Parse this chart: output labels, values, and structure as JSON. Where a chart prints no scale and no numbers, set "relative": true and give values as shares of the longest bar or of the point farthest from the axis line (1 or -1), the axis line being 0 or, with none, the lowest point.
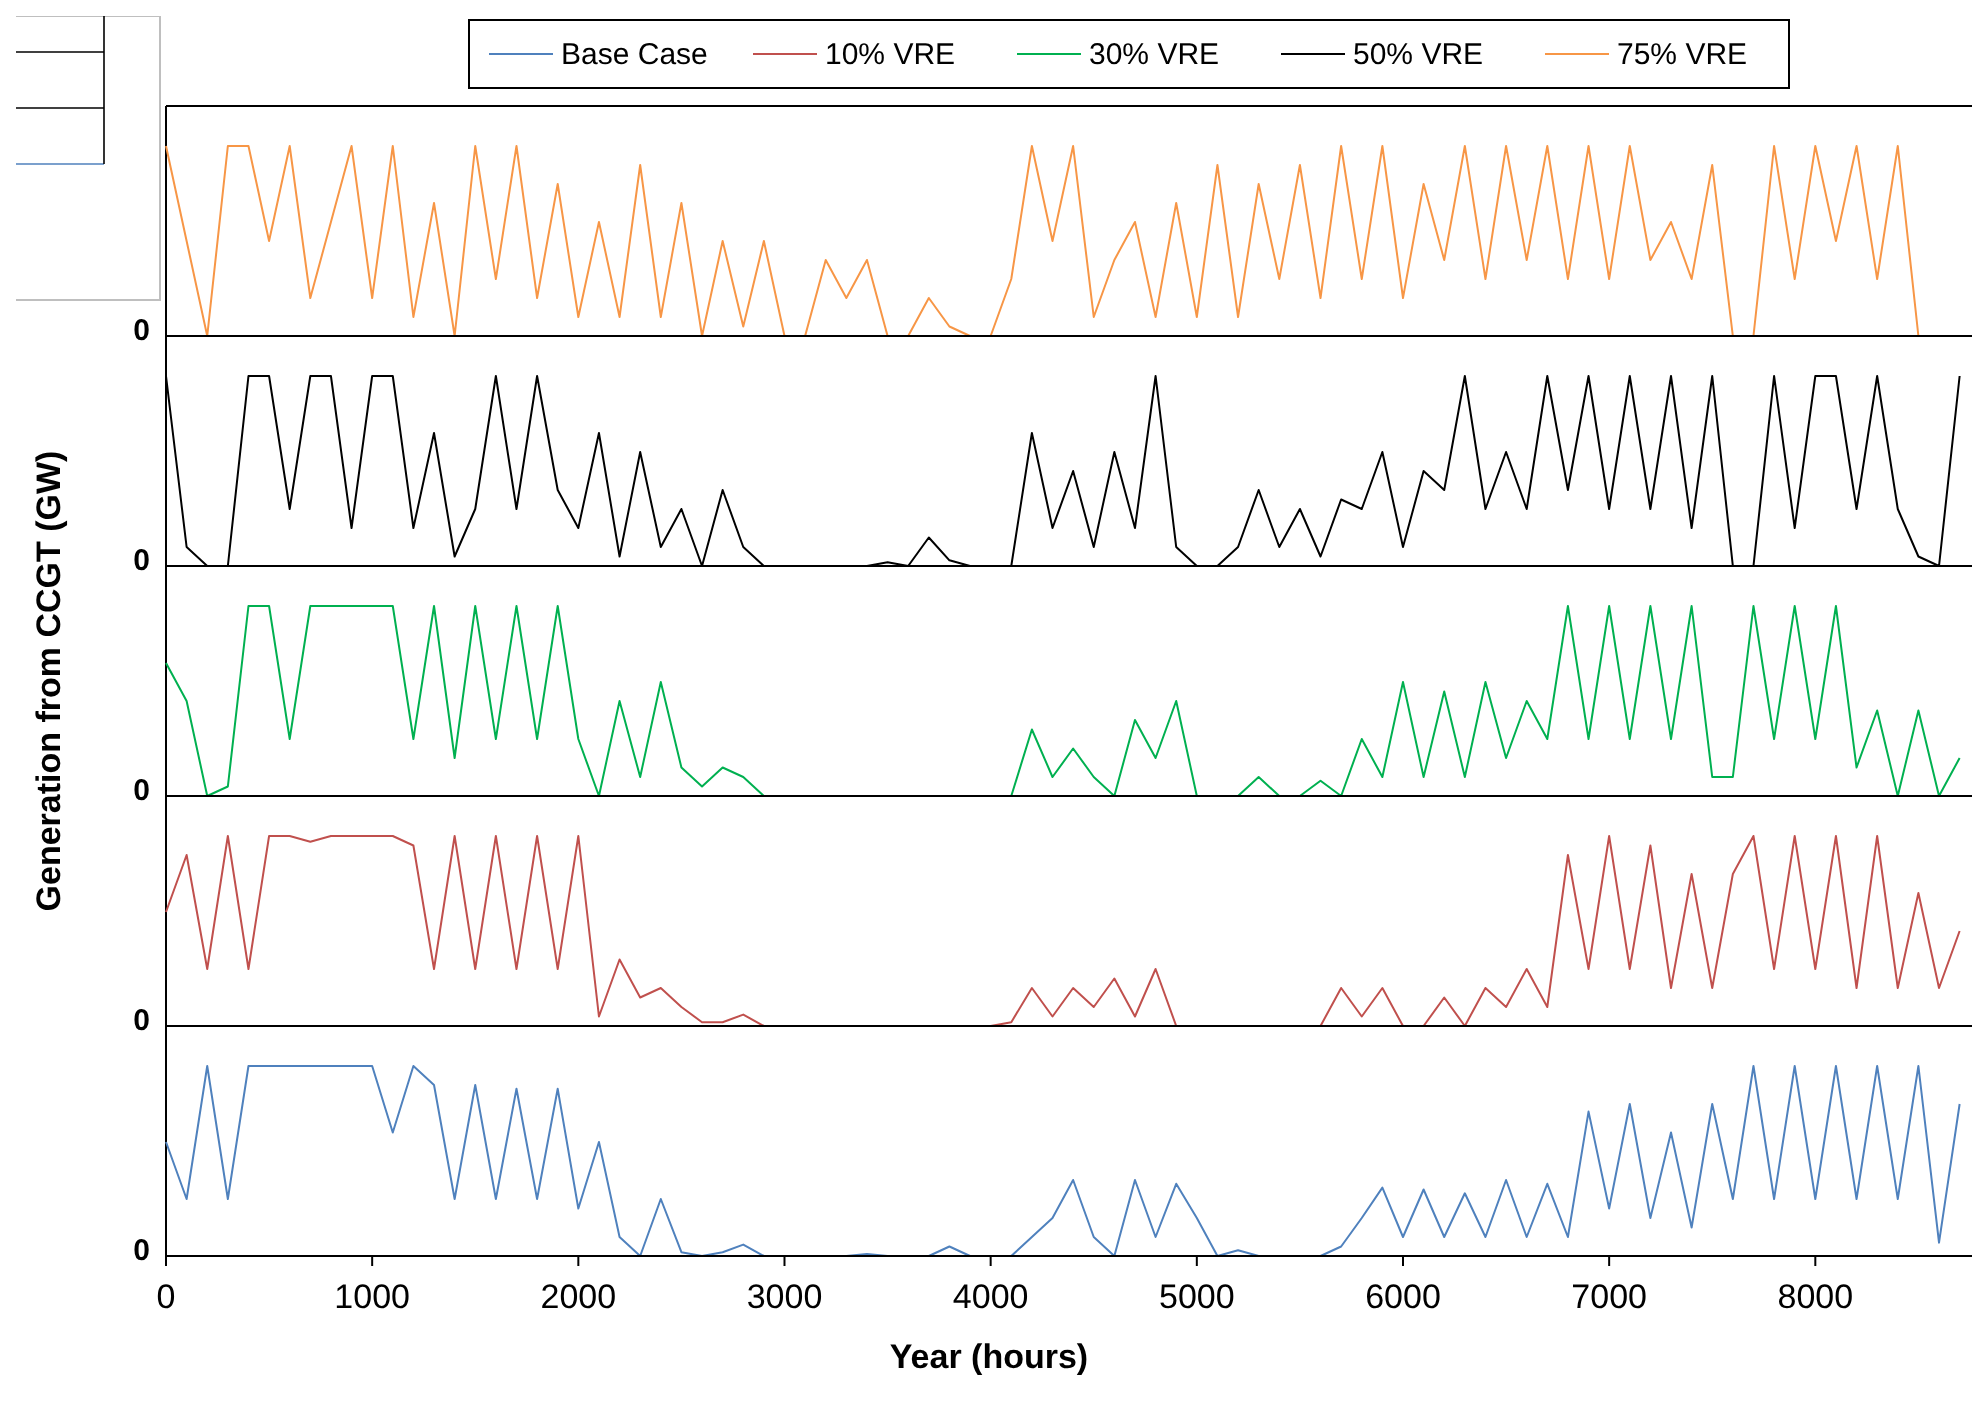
{
  "chart_data": [
    {
      "type": "line",
      "relative": true,
      "legend": "top",
      "tick_labels": false,
      "xlim": [
        0,
        8760
      ],
      "annotations": [
        "0"
      ],
      "x": [
        0,
        100,
        200,
        300,
        400,
        500,
        600,
        700,
        800,
        900,
        1000,
        1100,
        1200,
        1300,
        1400,
        1500,
        1600,
        1700,
        1800,
        1900,
        2000,
        2100,
        2200,
        2300,
        2400,
        2500,
        2600,
        2700,
        2800,
        2900,
        3000,
        3100,
        3200,
        3300,
        3400,
        3500,
        3600,
        3700,
        3800,
        3900,
        4000,
        4100,
        4200,
        4300,
        4400,
        4500,
        4600,
        4700,
        4800,
        4900,
        5000,
        5100,
        5200,
        5300,
        5400,
        5500,
        5600,
        5700,
        5800,
        5900,
        6000,
        6100,
        6200,
        6300,
        6400,
        6500,
        6600,
        6700,
        6800,
        6900,
        7000,
        7100,
        7200,
        7300,
        7400,
        7500,
        7600,
        7700,
        7800,
        7900,
        8000,
        8100,
        8200,
        8300,
        8400,
        8500,
        8600,
        8700
      ],
      "series": [
        {
          "name": "75% VRE",
          "color": "#f79646",
          "values": [
            1,
            0.5,
            0,
            1,
            1,
            0.5,
            1,
            0.2,
            0.6,
            1,
            0.2,
            1,
            0.1,
            0.7,
            0,
            1,
            0.3,
            1,
            0.2,
            0.8,
            0.1,
            0.6,
            0.1,
            0.9,
            0.1,
            0.7,
            0,
            0.5,
            0.05,
            0.5,
            0,
            0,
            0.4,
            0.2,
            0.4,
            0,
            0,
            0.2,
            0.05,
            0,
            0,
            0.3,
            1,
            0.5,
            1,
            0.1,
            0.4,
            0.6,
            0.1,
            0.7,
            0.1,
            0.9,
            0.1,
            0.8,
            0.3,
            0.9,
            0.2,
            1,
            0.3,
            1,
            0.2,
            0.8,
            0.4,
            1,
            0.3,
            1,
            0.4,
            1,
            0.3,
            1,
            0.3,
            1,
            0.4,
            0.6,
            0.3,
            0.9,
            0,
            0,
            1,
            0.3,
            1,
            0.5,
            1,
            0.3,
            1,
            0,
            0,
            0
          ]
        }
      ]
    },
    {
      "type": "line",
      "relative": true,
      "tick_labels": false,
      "xlim": [
        0,
        8760
      ],
      "annotations": [
        "0"
      ],
      "x": [
        0,
        100,
        200,
        300,
        400,
        500,
        600,
        700,
        800,
        900,
        1000,
        1100,
        1200,
        1300,
        1400,
        1500,
        1600,
        1700,
        1800,
        1900,
        2000,
        2100,
        2200,
        2300,
        2400,
        2500,
        2600,
        2700,
        2800,
        2900,
        3000,
        3100,
        3200,
        3300,
        3400,
        3500,
        3600,
        3700,
        3800,
        3900,
        4000,
        4100,
        4200,
        4300,
        4400,
        4500,
        4600,
        4700,
        4800,
        4900,
        5000,
        5100,
        5200,
        5300,
        5400,
        5500,
        5600,
        5700,
        5800,
        5900,
        6000,
        6100,
        6200,
        6300,
        6400,
        6500,
        6600,
        6700,
        6800,
        6900,
        7000,
        7100,
        7200,
        7300,
        7400,
        7500,
        7600,
        7700,
        7800,
        7900,
        8000,
        8100,
        8200,
        8300,
        8400,
        8500,
        8600,
        8700
      ],
      "series": [
        {
          "name": "50% VRE",
          "color": "#000000",
          "values": [
            1,
            0.1,
            0,
            0,
            1,
            1,
            0.3,
            1,
            1,
            0.2,
            1,
            1,
            0.2,
            0.7,
            0.05,
            0.3,
            1,
            0.3,
            1,
            0.4,
            0.2,
            0.7,
            0.05,
            0.6,
            0.1,
            0.3,
            0,
            0.4,
            0.1,
            0,
            0,
            0,
            0,
            0,
            0,
            0.02,
            0,
            0.15,
            0.03,
            0,
            0,
            0,
            0.7,
            0.2,
            0.5,
            0.1,
            0.6,
            0.2,
            1,
            0.1,
            0,
            0,
            0.1,
            0.4,
            0.1,
            0.3,
            0.05,
            0.35,
            0.3,
            0.6,
            0.1,
            0.5,
            0.4,
            1,
            0.3,
            0.6,
            0.3,
            1,
            0.4,
            1,
            0.3,
            1,
            0.3,
            1,
            0.2,
            1,
            0,
            0,
            1,
            0.2,
            1,
            1,
            0.3,
            1,
            0.3,
            0.05,
            0,
            1
          ]
        }
      ]
    },
    {
      "type": "line",
      "relative": true,
      "tick_labels": false,
      "xlim": [
        0,
        8760
      ],
      "annotations": [
        "0"
      ],
      "ylabel": "Generation from CCGT (GW)",
      "x": [
        0,
        100,
        200,
        300,
        400,
        500,
        600,
        700,
        800,
        900,
        1000,
        1100,
        1200,
        1300,
        1400,
        1500,
        1600,
        1700,
        1800,
        1900,
        2000,
        2100,
        2200,
        2300,
        2400,
        2500,
        2600,
        2700,
        2800,
        2900,
        3000,
        3100,
        3200,
        3300,
        3400,
        3500,
        3600,
        3700,
        3800,
        3900,
        4000,
        4100,
        4200,
        4300,
        4400,
        4500,
        4600,
        4700,
        4800,
        4900,
        5000,
        5100,
        5200,
        5300,
        5400,
        5500,
        5600,
        5700,
        5800,
        5900,
        6000,
        6100,
        6200,
        6300,
        6400,
        6500,
        6600,
        6700,
        6800,
        6900,
        7000,
        7100,
        7200,
        7300,
        7400,
        7500,
        7600,
        7700,
        7800,
        7900,
        8000,
        8100,
        8200,
        8300,
        8400,
        8500,
        8600,
        8700
      ],
      "series": [
        {
          "name": "30% VRE",
          "color": "#00b050",
          "values": [
            0.7,
            0.5,
            0,
            0.05,
            1,
            1,
            0.3,
            1,
            1,
            1,
            1,
            1,
            0.3,
            1,
            0.2,
            1,
            0.3,
            1,
            0.3,
            1,
            0.3,
            0,
            0.5,
            0.1,
            0.6,
            0.15,
            0.05,
            0.15,
            0.1,
            0,
            0,
            0,
            0,
            0,
            0,
            0,
            0,
            0,
            0,
            0,
            0,
            0,
            0.35,
            0.1,
            0.25,
            0.1,
            0,
            0.4,
            0.2,
            0.5,
            0,
            0,
            0,
            0.1,
            0,
            0,
            0.08,
            0,
            0.3,
            0.1,
            0.6,
            0.1,
            0.55,
            0.1,
            0.6,
            0.2,
            0.5,
            0.3,
            1,
            0.3,
            1,
            0.3,
            1,
            0.3,
            1,
            0.1,
            0.1,
            1,
            0.3,
            1,
            0.3,
            1,
            0.15,
            0.45,
            0,
            0.45,
            0,
            0.2
          ]
        }
      ]
    },
    {
      "type": "line",
      "relative": true,
      "tick_labels": false,
      "xlim": [
        0,
        8760
      ],
      "annotations": [
        "0"
      ],
      "x": [
        0,
        100,
        200,
        300,
        400,
        500,
        600,
        700,
        800,
        900,
        1000,
        1100,
        1200,
        1300,
        1400,
        1500,
        1600,
        1700,
        1800,
        1900,
        2000,
        2100,
        2200,
        2300,
        2400,
        2500,
        2600,
        2700,
        2800,
        2900,
        3000,
        3100,
        3200,
        3300,
        3400,
        3500,
        3600,
        3700,
        3800,
        3900,
        4000,
        4100,
        4200,
        4300,
        4400,
        4500,
        4600,
        4700,
        4800,
        4900,
        5000,
        5100,
        5200,
        5300,
        5400,
        5500,
        5600,
        5700,
        5800,
        5900,
        6000,
        6100,
        6200,
        6300,
        6400,
        6500,
        6600,
        6700,
        6800,
        6900,
        7000,
        7100,
        7200,
        7300,
        7400,
        7500,
        7600,
        7700,
        7800,
        7900,
        8000,
        8100,
        8200,
        8300,
        8400,
        8500,
        8600,
        8700
      ],
      "series": [
        {
          "name": "10% VRE",
          "color": "#c0504d",
          "values": [
            0.6,
            0.9,
            0.3,
            1,
            0.3,
            1,
            1,
            0.97,
            1,
            1,
            1,
            1,
            0.95,
            0.3,
            1,
            0.3,
            1,
            0.3,
            1,
            0.3,
            1,
            0.05,
            0.35,
            0.15,
            0.2,
            0.1,
            0.02,
            0.02,
            0.06,
            0,
            0,
            0,
            0,
            0,
            0,
            0,
            0,
            0,
            0,
            0,
            0,
            0.02,
            0.2,
            0.05,
            0.2,
            0.1,
            0.25,
            0.05,
            0.3,
            0,
            0,
            0,
            0,
            0,
            0,
            0,
            0,
            0.2,
            0.05,
            0.2,
            0,
            0,
            0.15,
            0,
            0.2,
            0.1,
            0.3,
            0.1,
            0.9,
            0.3,
            1,
            0.3,
            0.95,
            0.2,
            0.8,
            0.2,
            0.8,
            1,
            0.3,
            1,
            0.3,
            1,
            0.2,
            1,
            0.2,
            0.7,
            0.2,
            0.5
          ]
        }
      ]
    },
    {
      "type": "line",
      "relative": true,
      "tick_labels": "x",
      "xlim": [
        0,
        8760
      ],
      "xticks": [
        0,
        1000,
        2000,
        3000,
        4000,
        5000,
        6000,
        7000,
        8000
      ],
      "xlabel": "Year (hours)",
      "annotations": [
        "0"
      ],
      "x": [
        0,
        100,
        200,
        300,
        400,
        500,
        600,
        700,
        800,
        900,
        1000,
        1100,
        1200,
        1300,
        1400,
        1500,
        1600,
        1700,
        1800,
        1900,
        2000,
        2100,
        2200,
        2300,
        2400,
        2500,
        2600,
        2700,
        2800,
        2900,
        3000,
        3100,
        3200,
        3300,
        3400,
        3500,
        3600,
        3700,
        3800,
        3900,
        4000,
        4100,
        4200,
        4300,
        4400,
        4500,
        4600,
        4700,
        4800,
        4900,
        5000,
        5100,
        5200,
        5300,
        5400,
        5500,
        5600,
        5700,
        5800,
        5900,
        6000,
        6100,
        6200,
        6300,
        6400,
        6500,
        6600,
        6700,
        6800,
        6900,
        7000,
        7100,
        7200,
        7300,
        7400,
        7500,
        7600,
        7700,
        7800,
        7900,
        8000,
        8100,
        8200,
        8300,
        8400,
        8500,
        8600,
        8700
      ],
      "series": [
        {
          "name": "Base Case",
          "color": "#4f81bd",
          "values": [
            0.6,
            0.3,
            1,
            0.3,
            1,
            1,
            1,
            1,
            1,
            1,
            1,
            0.65,
            1,
            0.9,
            0.3,
            0.9,
            0.3,
            0.88,
            0.3,
            0.88,
            0.25,
            0.6,
            0.1,
            0,
            0.3,
            0.02,
            0,
            0.02,
            0.06,
            0,
            0,
            0,
            0,
            0,
            0.01,
            0,
            0,
            0,
            0.05,
            0,
            0,
            0,
            0.1,
            0.2,
            0.4,
            0.1,
            0,
            0.4,
            0.1,
            0.38,
            0.2,
            0,
            0.03,
            0,
            0,
            0,
            0,
            0.05,
            0.2,
            0.36,
            0.1,
            0.35,
            0.1,
            0.33,
            0.1,
            0.4,
            0.1,
            0.38,
            0.1,
            0.76,
            0.25,
            0.8,
            0.2,
            0.65,
            0.15,
            0.8,
            0.3,
            1,
            0.3,
            1,
            0.3,
            1,
            0.3,
            1,
            0.3,
            1,
            0.07,
            0.8
          ]
        }
      ]
    }
  ]
}
